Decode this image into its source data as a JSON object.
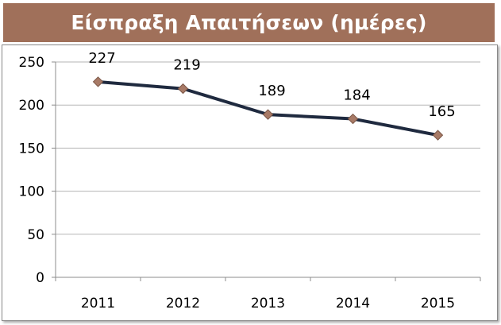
{
  "chart_data": {
    "type": "line",
    "title": "Είσπραξη Απαιτήσεων (ημέρες)",
    "categories": [
      "2011",
      "2012",
      "2013",
      "2014",
      "2015"
    ],
    "series": [
      {
        "values": [
          227,
          219,
          189,
          184,
          165
        ]
      }
    ],
    "data_labels": [
      "227",
      "219",
      "189",
      "184",
      "165"
    ],
    "y_ticks": [
      "0",
      "50",
      "100",
      "150",
      "200",
      "250"
    ],
    "ylim": [
      0,
      250
    ],
    "grid": true,
    "line_color": "#1F2A3F",
    "marker_color": "#A87A66",
    "marker_shape": "diamond",
    "title_bg": "#A0705A"
  }
}
